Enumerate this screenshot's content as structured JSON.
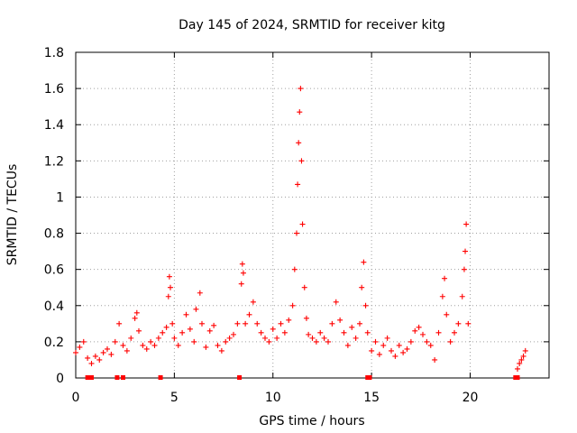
{
  "chart_data": {
    "type": "scatter",
    "title": "Day 145 of 2024, SRMTID for receiver kitg",
    "xlabel": "GPS time / hours",
    "ylabel": "SRMTID / TECUs",
    "xlim": [
      0,
      24
    ],
    "ylim": [
      0,
      1.8
    ],
    "x_ticks": [
      0,
      5,
      10,
      15,
      20
    ],
    "x_tick_labels": [
      "0",
      "5",
      "10",
      "15",
      "20"
    ],
    "y_ticks": [
      0,
      0.2,
      0.4,
      0.6,
      0.8,
      1.0,
      1.2,
      1.4,
      1.6,
      1.8
    ],
    "y_tick_labels": [
      "0",
      "0.2",
      "0.4",
      "0.6",
      "0.8",
      "1",
      "1.2",
      "1.4",
      "1.6",
      "1.8"
    ],
    "grid": true,
    "marker": "plus",
    "marker_color": "#ff0000",
    "series": [
      {
        "name": "SRMTID",
        "x": [
          0.0,
          0.2,
          0.4,
          0.6,
          0.8,
          1.0,
          1.2,
          1.4,
          1.6,
          1.8,
          2.0,
          2.2,
          2.4,
          2.6,
          2.8,
          3.0,
          3.1,
          3.2,
          3.4,
          3.6,
          3.8,
          4.0,
          4.2,
          4.4,
          4.6,
          4.7,
          4.75,
          4.8,
          4.9,
          5.0,
          5.2,
          5.4,
          5.6,
          5.8,
          6.0,
          6.1,
          6.3,
          6.4,
          6.6,
          6.8,
          7.0,
          7.2,
          7.4,
          7.6,
          7.8,
          8.0,
          8.2,
          8.4,
          8.45,
          8.5,
          8.6,
          8.8,
          9.0,
          9.2,
          9.4,
          9.6,
          9.8,
          10.0,
          10.2,
          10.4,
          10.6,
          10.8,
          11.0,
          11.1,
          11.2,
          11.25,
          11.3,
          11.35,
          11.4,
          11.45,
          11.5,
          11.6,
          11.7,
          11.8,
          12.0,
          12.2,
          12.4,
          12.6,
          12.8,
          13.0,
          13.2,
          13.4,
          13.6,
          13.8,
          14.0,
          14.2,
          14.4,
          14.5,
          14.6,
          14.7,
          14.8,
          15.0,
          15.2,
          15.4,
          15.6,
          15.8,
          16.0,
          16.2,
          16.4,
          16.6,
          16.8,
          17.0,
          17.2,
          17.4,
          17.6,
          17.8,
          18.0,
          18.2,
          18.4,
          18.6,
          18.7,
          18.8,
          19.0,
          19.2,
          19.4,
          19.6,
          19.7,
          19.75,
          19.8,
          19.9,
          22.4,
          22.5,
          22.6,
          22.7,
          22.8
        ],
        "y": [
          0.14,
          0.17,
          0.2,
          0.11,
          0.08,
          0.12,
          0.1,
          0.14,
          0.16,
          0.13,
          0.2,
          0.3,
          0.18,
          0.15,
          0.22,
          0.33,
          0.36,
          0.26,
          0.18,
          0.16,
          0.2,
          0.18,
          0.22,
          0.25,
          0.28,
          0.45,
          0.56,
          0.5,
          0.3,
          0.22,
          0.18,
          0.25,
          0.35,
          0.27,
          0.2,
          0.38,
          0.47,
          0.3,
          0.17,
          0.26,
          0.29,
          0.18,
          0.15,
          0.2,
          0.22,
          0.24,
          0.3,
          0.52,
          0.63,
          0.58,
          0.3,
          0.35,
          0.42,
          0.3,
          0.25,
          0.22,
          0.2,
          0.27,
          0.22,
          0.3,
          0.25,
          0.32,
          0.4,
          0.6,
          0.8,
          1.07,
          1.3,
          1.47,
          1.6,
          1.2,
          0.85,
          0.5,
          0.33,
          0.24,
          0.22,
          0.2,
          0.25,
          0.22,
          0.2,
          0.3,
          0.42,
          0.32,
          0.25,
          0.18,
          0.28,
          0.22,
          0.3,
          0.5,
          0.64,
          0.4,
          0.25,
          0.15,
          0.2,
          0.13,
          0.18,
          0.22,
          0.15,
          0.12,
          0.18,
          0.14,
          0.16,
          0.2,
          0.26,
          0.28,
          0.24,
          0.2,
          0.18,
          0.1,
          0.25,
          0.45,
          0.55,
          0.35,
          0.2,
          0.25,
          0.3,
          0.45,
          0.6,
          0.7,
          0.85,
          0.3,
          0.05,
          0.08,
          0.1,
          0.12,
          0.15
        ]
      }
    ],
    "gap_points": {
      "x": [
        0.6,
        0.8,
        2.1,
        2.4,
        4.3,
        8.3,
        14.8,
        14.9,
        22.3,
        22.4
      ],
      "y": [
        0,
        0,
        0,
        0,
        0,
        0,
        0,
        0,
        0,
        0
      ]
    }
  }
}
